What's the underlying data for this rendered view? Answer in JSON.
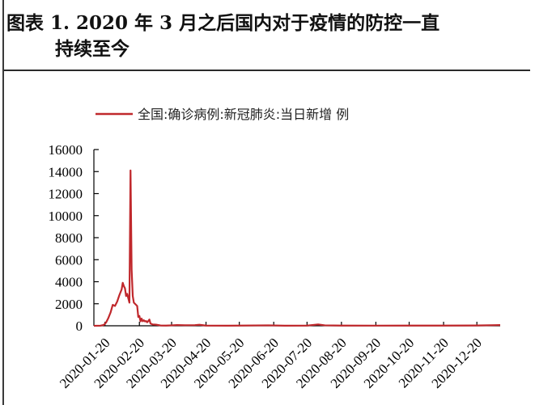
{
  "header": {
    "title_line1": "图表 1.   2020 年 3 月之后国内对于疫情的防控一直",
    "title_line2": "持续至今"
  },
  "colors": {
    "series": "#c0282c",
    "axis": "#000000"
  },
  "chart_data": {
    "type": "line",
    "title": "",
    "xlabel": "",
    "ylabel": "",
    "ylim": [
      0,
      16000
    ],
    "yticks": [
      0,
      2000,
      4000,
      6000,
      8000,
      10000,
      12000,
      14000,
      16000
    ],
    "xlim": [
      "2020-01-10",
      "2021-01-10"
    ],
    "xticks": [
      "2020-01-20",
      "2020-02-20",
      "2020-03-20",
      "2020-04-20",
      "2020-05-20",
      "2020-06-20",
      "2020-07-20",
      "2020-08-20",
      "2020-09-20",
      "2020-10-20",
      "2020-11-20",
      "2020-12-20"
    ],
    "legend_position": "top-center",
    "series": [
      {
        "name": "全国:确诊病例:新冠肺炎:当日新增 例",
        "points": [
          [
            "2020-01-10",
            0
          ],
          [
            "2020-01-16",
            10
          ],
          [
            "2020-01-19",
            80
          ],
          [
            "2020-01-21",
            300
          ],
          [
            "2020-01-23",
            700
          ],
          [
            "2020-01-25",
            1200
          ],
          [
            "2020-01-27",
            1900
          ],
          [
            "2020-01-29",
            1800
          ],
          [
            "2020-01-31",
            2200
          ],
          [
            "2020-02-02",
            2800
          ],
          [
            "2020-02-04",
            3300
          ],
          [
            "2020-02-05",
            3900
          ],
          [
            "2020-02-06",
            3600
          ],
          [
            "2020-02-07",
            3400
          ],
          [
            "2020-02-08",
            2700
          ],
          [
            "2020-02-09",
            2900
          ],
          [
            "2020-02-10",
            2500
          ],
          [
            "2020-02-11",
            2100
          ],
          [
            "2020-02-12",
            14100
          ],
          [
            "2020-02-13",
            5100
          ],
          [
            "2020-02-14",
            2700
          ],
          [
            "2020-02-15",
            2100
          ],
          [
            "2020-02-16",
            2000
          ],
          [
            "2020-02-17",
            1900
          ],
          [
            "2020-02-18",
            1800
          ],
          [
            "2020-02-19",
            800
          ],
          [
            "2020-02-20",
            890
          ],
          [
            "2020-02-21",
            400
          ],
          [
            "2020-02-22",
            650
          ],
          [
            "2020-02-23",
            410
          ],
          [
            "2020-02-24",
            500
          ],
          [
            "2020-02-25",
            400
          ],
          [
            "2020-02-26",
            430
          ],
          [
            "2020-02-27",
            320
          ],
          [
            "2020-02-28",
            430
          ],
          [
            "2020-02-29",
            570
          ],
          [
            "2020-03-01",
            200
          ],
          [
            "2020-03-03",
            120
          ],
          [
            "2020-03-06",
            100
          ],
          [
            "2020-03-10",
            30
          ],
          [
            "2020-03-15",
            20
          ],
          [
            "2020-03-20",
            40
          ],
          [
            "2020-03-25",
            70
          ],
          [
            "2020-04-01",
            50
          ],
          [
            "2020-04-10",
            60
          ],
          [
            "2020-04-14",
            90
          ],
          [
            "2020-04-20",
            20
          ],
          [
            "2020-05-10",
            10
          ],
          [
            "2020-06-15",
            40
          ],
          [
            "2020-06-30",
            10
          ],
          [
            "2020-07-20",
            20
          ],
          [
            "2020-07-30",
            120
          ],
          [
            "2020-08-05",
            40
          ],
          [
            "2020-08-20",
            20
          ],
          [
            "2020-09-20",
            15
          ],
          [
            "2020-10-20",
            20
          ],
          [
            "2020-11-20",
            20
          ],
          [
            "2020-12-20",
            25
          ],
          [
            "2021-01-06",
            60
          ],
          [
            "2021-01-10",
            70
          ]
        ]
      }
    ]
  }
}
